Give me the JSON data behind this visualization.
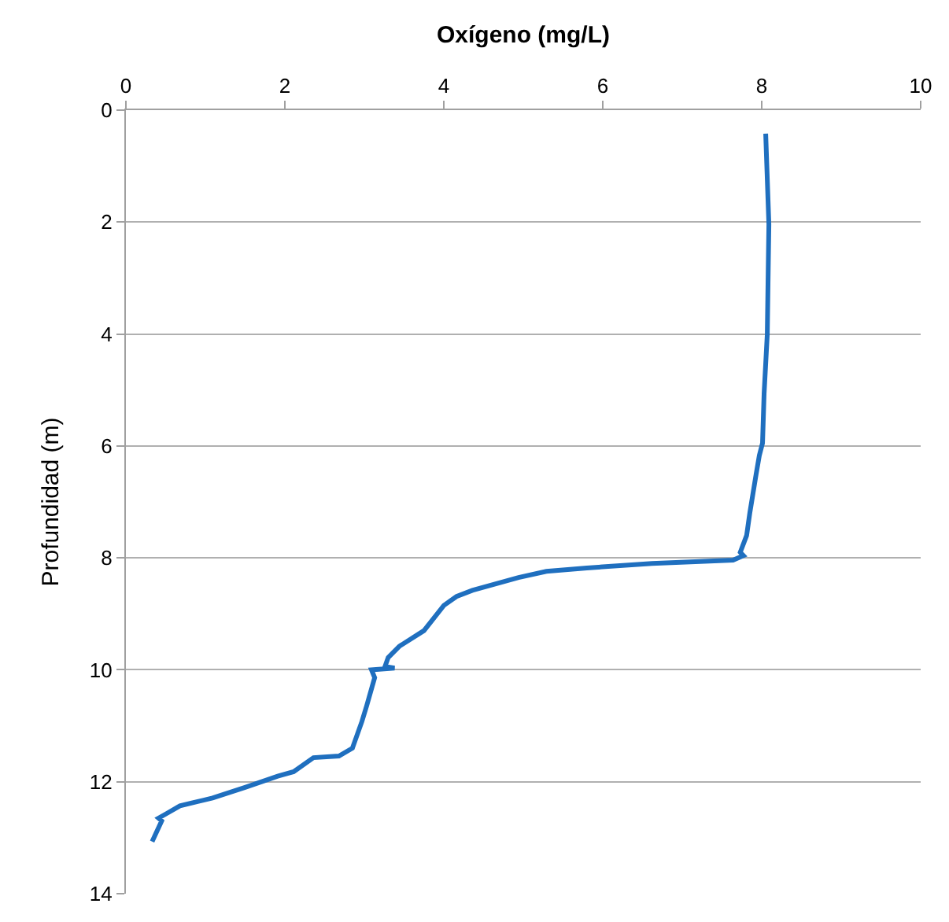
{
  "chart_data": {
    "type": "line",
    "xlabel": "Oxígeno (mg/L)",
    "ylabel": "Profundidad (m)",
    "xlim": [
      0,
      10
    ],
    "xticks": [
      0,
      2,
      4,
      6,
      8,
      10
    ],
    "ylim": [
      14,
      0
    ],
    "yticks": [
      0,
      2,
      4,
      6,
      8,
      10,
      12,
      14
    ],
    "grid": "y",
    "legend": false,
    "marker": "none",
    "line_style": "solid",
    "series": [
      {
        "color": "#1f6fbf",
        "x": [
          8.05,
          8.09,
          8.07,
          8.03,
          8.01,
          7.97,
          7.93,
          7.85,
          7.81,
          7.73,
          7.77,
          7.64,
          6.62,
          5.8,
          5.29,
          4.94,
          4.36,
          4.16,
          4.0,
          3.75,
          3.44,
          3.3,
          3.26,
          3.38,
          3.09,
          3.13,
          3.03,
          2.97,
          2.85,
          2.68,
          2.36,
          2.11,
          1.91,
          1.5,
          1.09,
          0.68,
          0.51,
          0.41,
          0.45,
          0.33
        ],
        "values": [
          0.42,
          2.04,
          4.0,
          5.06,
          5.95,
          6.17,
          6.5,
          7.2,
          7.6,
          7.9,
          7.96,
          8.04,
          8.1,
          8.18,
          8.24,
          8.35,
          8.58,
          8.69,
          8.85,
          9.3,
          9.58,
          9.78,
          9.94,
          9.97,
          10.0,
          10.14,
          10.64,
          10.92,
          11.4,
          11.54,
          11.57,
          11.82,
          11.9,
          12.1,
          12.29,
          12.43,
          12.57,
          12.65,
          12.7,
          13.07
        ]
      }
    ]
  }
}
